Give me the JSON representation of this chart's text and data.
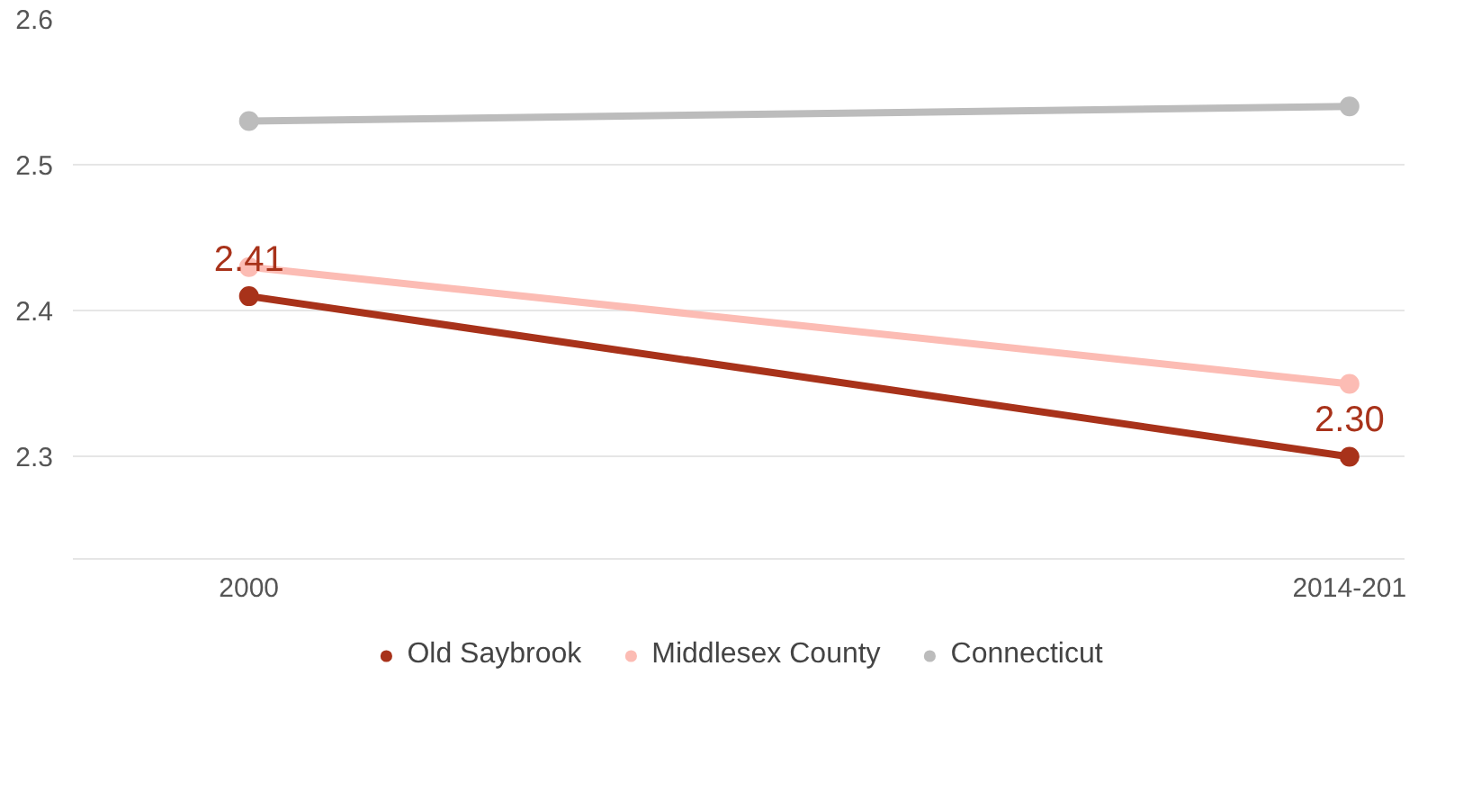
{
  "chart_data": {
    "type": "line",
    "categories": [
      "2000",
      "2014-201"
    ],
    "series": [
      {
        "name": "Old Saybrook",
        "color": "#a8321a",
        "values": [
          2.41,
          2.3
        ],
        "value_labels": [
          "2.41",
          "2.30"
        ]
      },
      {
        "name": "Middlesex County",
        "color": "#fcbcb4",
        "values": [
          2.43,
          2.35
        ]
      },
      {
        "name": "Connecticut",
        "color": "#bcbcbc",
        "values": [
          2.53,
          2.54
        ]
      }
    ],
    "ylim": [
      2.23,
      2.6
    ],
    "yticks": [
      2.3,
      2.4,
      2.5,
      2.6
    ],
    "grid": "y",
    "legend": "bottom",
    "marker": "circle",
    "line_style": "solid"
  }
}
